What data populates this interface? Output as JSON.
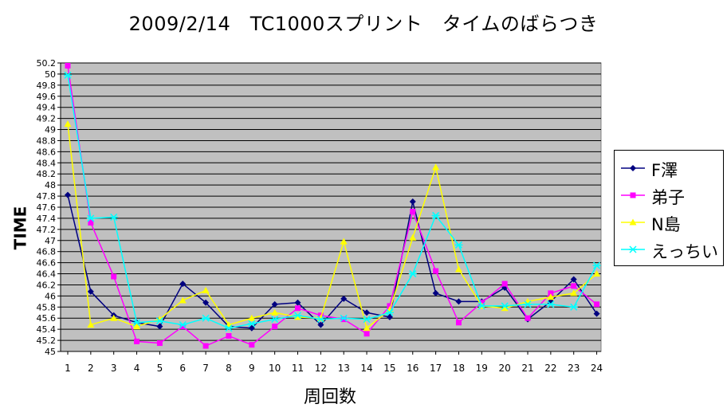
{
  "chart_data": {
    "type": "line",
    "title": "2009/2/14　TC1000スプリント　タイムのばらつき",
    "xlabel": "周回数",
    "ylabel": "TIME",
    "ylim": [
      45,
      50.2
    ],
    "ytick_step": 0.2,
    "grid": true,
    "plot_bg": "#c0c0c0",
    "legend_position": "right",
    "x": [
      1,
      2,
      3,
      4,
      5,
      6,
      7,
      8,
      9,
      10,
      11,
      12,
      13,
      14,
      15,
      16,
      17,
      18,
      19,
      20,
      21,
      22,
      23,
      24
    ],
    "series": [
      {
        "name": "F澤",
        "color": "#000080",
        "marker": "diamond",
        "values": [
          47.82,
          46.08,
          45.65,
          45.52,
          45.45,
          46.22,
          45.88,
          45.45,
          45.42,
          45.85,
          45.88,
          45.48,
          45.95,
          45.7,
          45.62,
          47.7,
          46.05,
          45.9,
          45.9,
          46.15,
          45.58,
          45.9,
          46.3,
          45.68
        ]
      },
      {
        "name": "弟子",
        "color": "#ff00ff",
        "marker": "square",
        "values": [
          50.15,
          47.32,
          46.35,
          45.18,
          45.15,
          45.45,
          45.1,
          45.28,
          45.12,
          45.45,
          45.78,
          45.65,
          45.58,
          45.32,
          45.82,
          47.52,
          46.45,
          45.52,
          45.88,
          46.22,
          45.6,
          46.05,
          46.18,
          45.85
        ]
      },
      {
        "name": "N島",
        "color": "#ffff00",
        "marker": "triangle",
        "values": [
          49.1,
          45.48,
          45.6,
          45.45,
          45.58,
          45.92,
          46.1,
          45.48,
          45.6,
          45.7,
          45.62,
          45.6,
          46.98,
          45.42,
          45.75,
          47.05,
          48.32,
          46.48,
          45.82,
          45.78,
          45.9,
          45.98,
          46.05,
          46.4
        ]
      },
      {
        "name": "えっちい",
        "color": "#00ffff",
        "marker": "star",
        "values": [
          49.98,
          47.4,
          47.42,
          45.52,
          45.55,
          45.48,
          45.6,
          45.42,
          45.5,
          45.58,
          45.65,
          45.58,
          45.6,
          45.58,
          45.7,
          46.4,
          47.45,
          46.92,
          45.82,
          45.82,
          45.85,
          45.85,
          45.8,
          46.55
        ]
      }
    ]
  }
}
